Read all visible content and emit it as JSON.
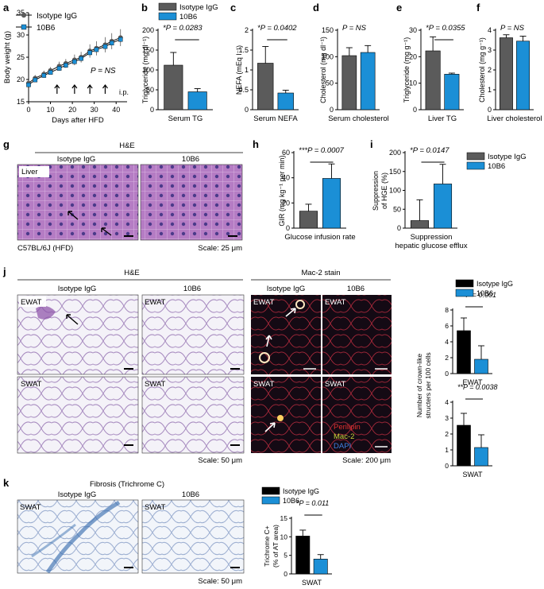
{
  "colors": {
    "isotype": "#5b5b5b",
    "tenb6": "#1b8fd6",
    "black": "#000000",
    "tissue_he": "#c89ad0",
    "tissue_dark": "#1a0f1a"
  },
  "legend": {
    "isotype": "Isotype IgG",
    "tenb6": "10B6"
  },
  "chart_data": [
    {
      "panel": "a",
      "type": "line",
      "xlabel": "Days after HFD",
      "ylabel": "Body weight (g)",
      "xlim": [
        0,
        45
      ],
      "ylim": [
        15,
        35
      ],
      "xticks": [
        0,
        10,
        20,
        30,
        40
      ],
      "yticks": [
        15,
        20,
        25,
        30,
        35
      ],
      "annotation": "P = NS",
      "injection_label": "i.p.",
      "injection_days": [
        13,
        21,
        28,
        35
      ],
      "series": [
        {
          "name": "Isotype IgG",
          "x": [
            0,
            3,
            7,
            10,
            14,
            17,
            21,
            24,
            28,
            31,
            35,
            38,
            42
          ],
          "y": [
            19.2,
            20.3,
            21.2,
            22.0,
            23.0,
            23.6,
            24.4,
            25.0,
            26.4,
            27.0,
            27.8,
            28.6,
            29.4
          ],
          "err": [
            0.6,
            0.7,
            0.8,
            0.8,
            1.0,
            1.0,
            1.2,
            1.2,
            1.5,
            1.6,
            1.7,
            1.8,
            1.9
          ]
        },
        {
          "name": "10B6",
          "x": [
            0,
            3,
            7,
            10,
            14,
            17,
            21,
            24,
            28,
            31,
            35,
            38,
            42
          ],
          "y": [
            18.8,
            19.9,
            20.9,
            21.6,
            22.5,
            23.2,
            24.0,
            24.7,
            26.0,
            26.7,
            27.4,
            28.2,
            29.0
          ],
          "err": [
            0.5,
            0.6,
            0.7,
            0.8,
            0.9,
            1.0,
            1.1,
            1.1,
            1.3,
            1.4,
            1.5,
            1.6,
            1.7
          ]
        }
      ]
    },
    {
      "panel": "b",
      "type": "bar",
      "title": "Serum TG",
      "ylabel": "Triglyceride (mg dl⁻¹)",
      "ylim": [
        0,
        200
      ],
      "yticks": [
        0,
        50,
        100,
        150,
        200
      ],
      "annotation": "*P = 0.0283",
      "values": [
        112,
        45
      ],
      "err": [
        32,
        8
      ],
      "legend": [
        "Isotype IgG",
        "10B6"
      ]
    },
    {
      "panel": "c",
      "type": "bar",
      "title": "Serum NEFA",
      "ylabel": "NEFA (mEq l⁻¹)",
      "ylim": [
        0,
        2.0
      ],
      "yticks": [
        0.0,
        0.5,
        1.0,
        1.5,
        2.0
      ],
      "annotation": "*P = 0.0402",
      "values": [
        1.17,
        0.42
      ],
      "err": [
        0.42,
        0.07
      ]
    },
    {
      "panel": "d",
      "type": "bar",
      "title": "Serum cholesterol",
      "ylabel": "Cholesterol (mg dl⁻¹)",
      "ylim": [
        0,
        150
      ],
      "yticks": [
        0,
        50,
        100,
        150
      ],
      "annotation": "P = NS",
      "values": [
        102,
        108
      ],
      "err": [
        15,
        13
      ]
    },
    {
      "panel": "e",
      "type": "bar",
      "title": "Liver TG",
      "ylabel": "Triglyceride (mg g⁻¹)",
      "ylim": [
        0,
        30
      ],
      "yticks": [
        0,
        10,
        20,
        30
      ],
      "annotation": "*P = 0.0355",
      "values": [
        22.2,
        13.4
      ],
      "err": [
        5.3,
        0.4
      ]
    },
    {
      "panel": "f",
      "type": "bar",
      "title": "Liver cholesterol",
      "ylabel": "Cholesterol (mg g⁻¹)",
      "ylim": [
        0,
        4
      ],
      "yticks": [
        0,
        1,
        2,
        3,
        4
      ],
      "annotation": "P = NS",
      "values": [
        3.62,
        3.45
      ],
      "err": [
        0.15,
        0.25
      ]
    },
    {
      "panel": "h",
      "type": "bar",
      "title": "Glucose infusion rate",
      "ylabel": "GIR (mg kg⁻¹ per min)",
      "ylim": [
        0,
        60
      ],
      "yticks": [
        0,
        20,
        40,
        60
      ],
      "annotation": "***P = 0.0007",
      "values": [
        13.5,
        39.5
      ],
      "err": [
        5.5,
        11.5
      ]
    },
    {
      "panel": "i",
      "type": "bar",
      "title": "Suppression hepatic glucose efflux",
      "ylabel": "Suppression of HGE (%)",
      "ylim": [
        0,
        200
      ],
      "yticks": [
        0,
        50,
        100,
        150,
        200
      ],
      "annotation": "*P = 0.0147",
      "values": [
        20,
        117
      ],
      "err": [
        55,
        52
      ],
      "legend": [
        "Isotype IgG",
        "10B6"
      ]
    },
    {
      "panel": "j1",
      "type": "bar",
      "title": "EWAT",
      "ylabel": "Number of crown-like structers per 100 cells",
      "ylim": [
        0,
        8
      ],
      "yticks": [
        0,
        2,
        4,
        6,
        8
      ],
      "annotation": "***P = 0.001",
      "values": [
        5.4,
        1.8
      ],
      "err": [
        1.6,
        1.7
      ],
      "legend": [
        "Isotype IgG",
        "10B6"
      ]
    },
    {
      "panel": "j2",
      "type": "bar",
      "title": "SWAT",
      "ylim": [
        0,
        4
      ],
      "yticks": [
        0,
        1,
        2,
        3,
        4
      ],
      "annotation": "**P = 0.0038",
      "values": [
        2.55,
        1.15
      ],
      "err": [
        0.75,
        0.8
      ]
    },
    {
      "panel": "k",
      "type": "bar",
      "title": "SWAT",
      "ylabel": "Trichrome C+ (% of AT area)",
      "ylim": [
        0,
        15
      ],
      "yticks": [
        0,
        5,
        10,
        15
      ],
      "annotation": "*P = 0.011",
      "values": [
        10.2,
        4.0
      ],
      "err": [
        1.6,
        1.2
      ],
      "legend": [
        "Isotype IgG",
        "10B6"
      ]
    }
  ],
  "panels": {
    "g": {
      "label": "g",
      "stain": "H&E",
      "groups": [
        "Isotype IgG",
        "10B6"
      ],
      "tissue": "Liver",
      "caption": "C57BL/6J (HFD)",
      "scale": "Scale: 25 μm"
    },
    "j": {
      "label": "j",
      "stain_left": "H&E",
      "stain_right": "Mac-2 stain",
      "groups": [
        "Isotype IgG",
        "10B6",
        "Isotype IgG",
        "10B6"
      ],
      "tissues": [
        "EWAT",
        "SWAT"
      ],
      "scale_left": "Scale: 50 μm",
      "scale_right": "Scale: 200 μm",
      "stain_legend": [
        "Perilipin",
        "Mac-2",
        "DAPI"
      ],
      "stain_colors": [
        "#e0302f",
        "#c9d33a",
        "#3f7fe0"
      ]
    },
    "k": {
      "label": "k",
      "stain": "Fibrosis (Trichrome C)",
      "groups": [
        "Isotype IgG",
        "10B6"
      ],
      "tissue": "SWAT",
      "scale": "Scale: 50 μm"
    }
  }
}
